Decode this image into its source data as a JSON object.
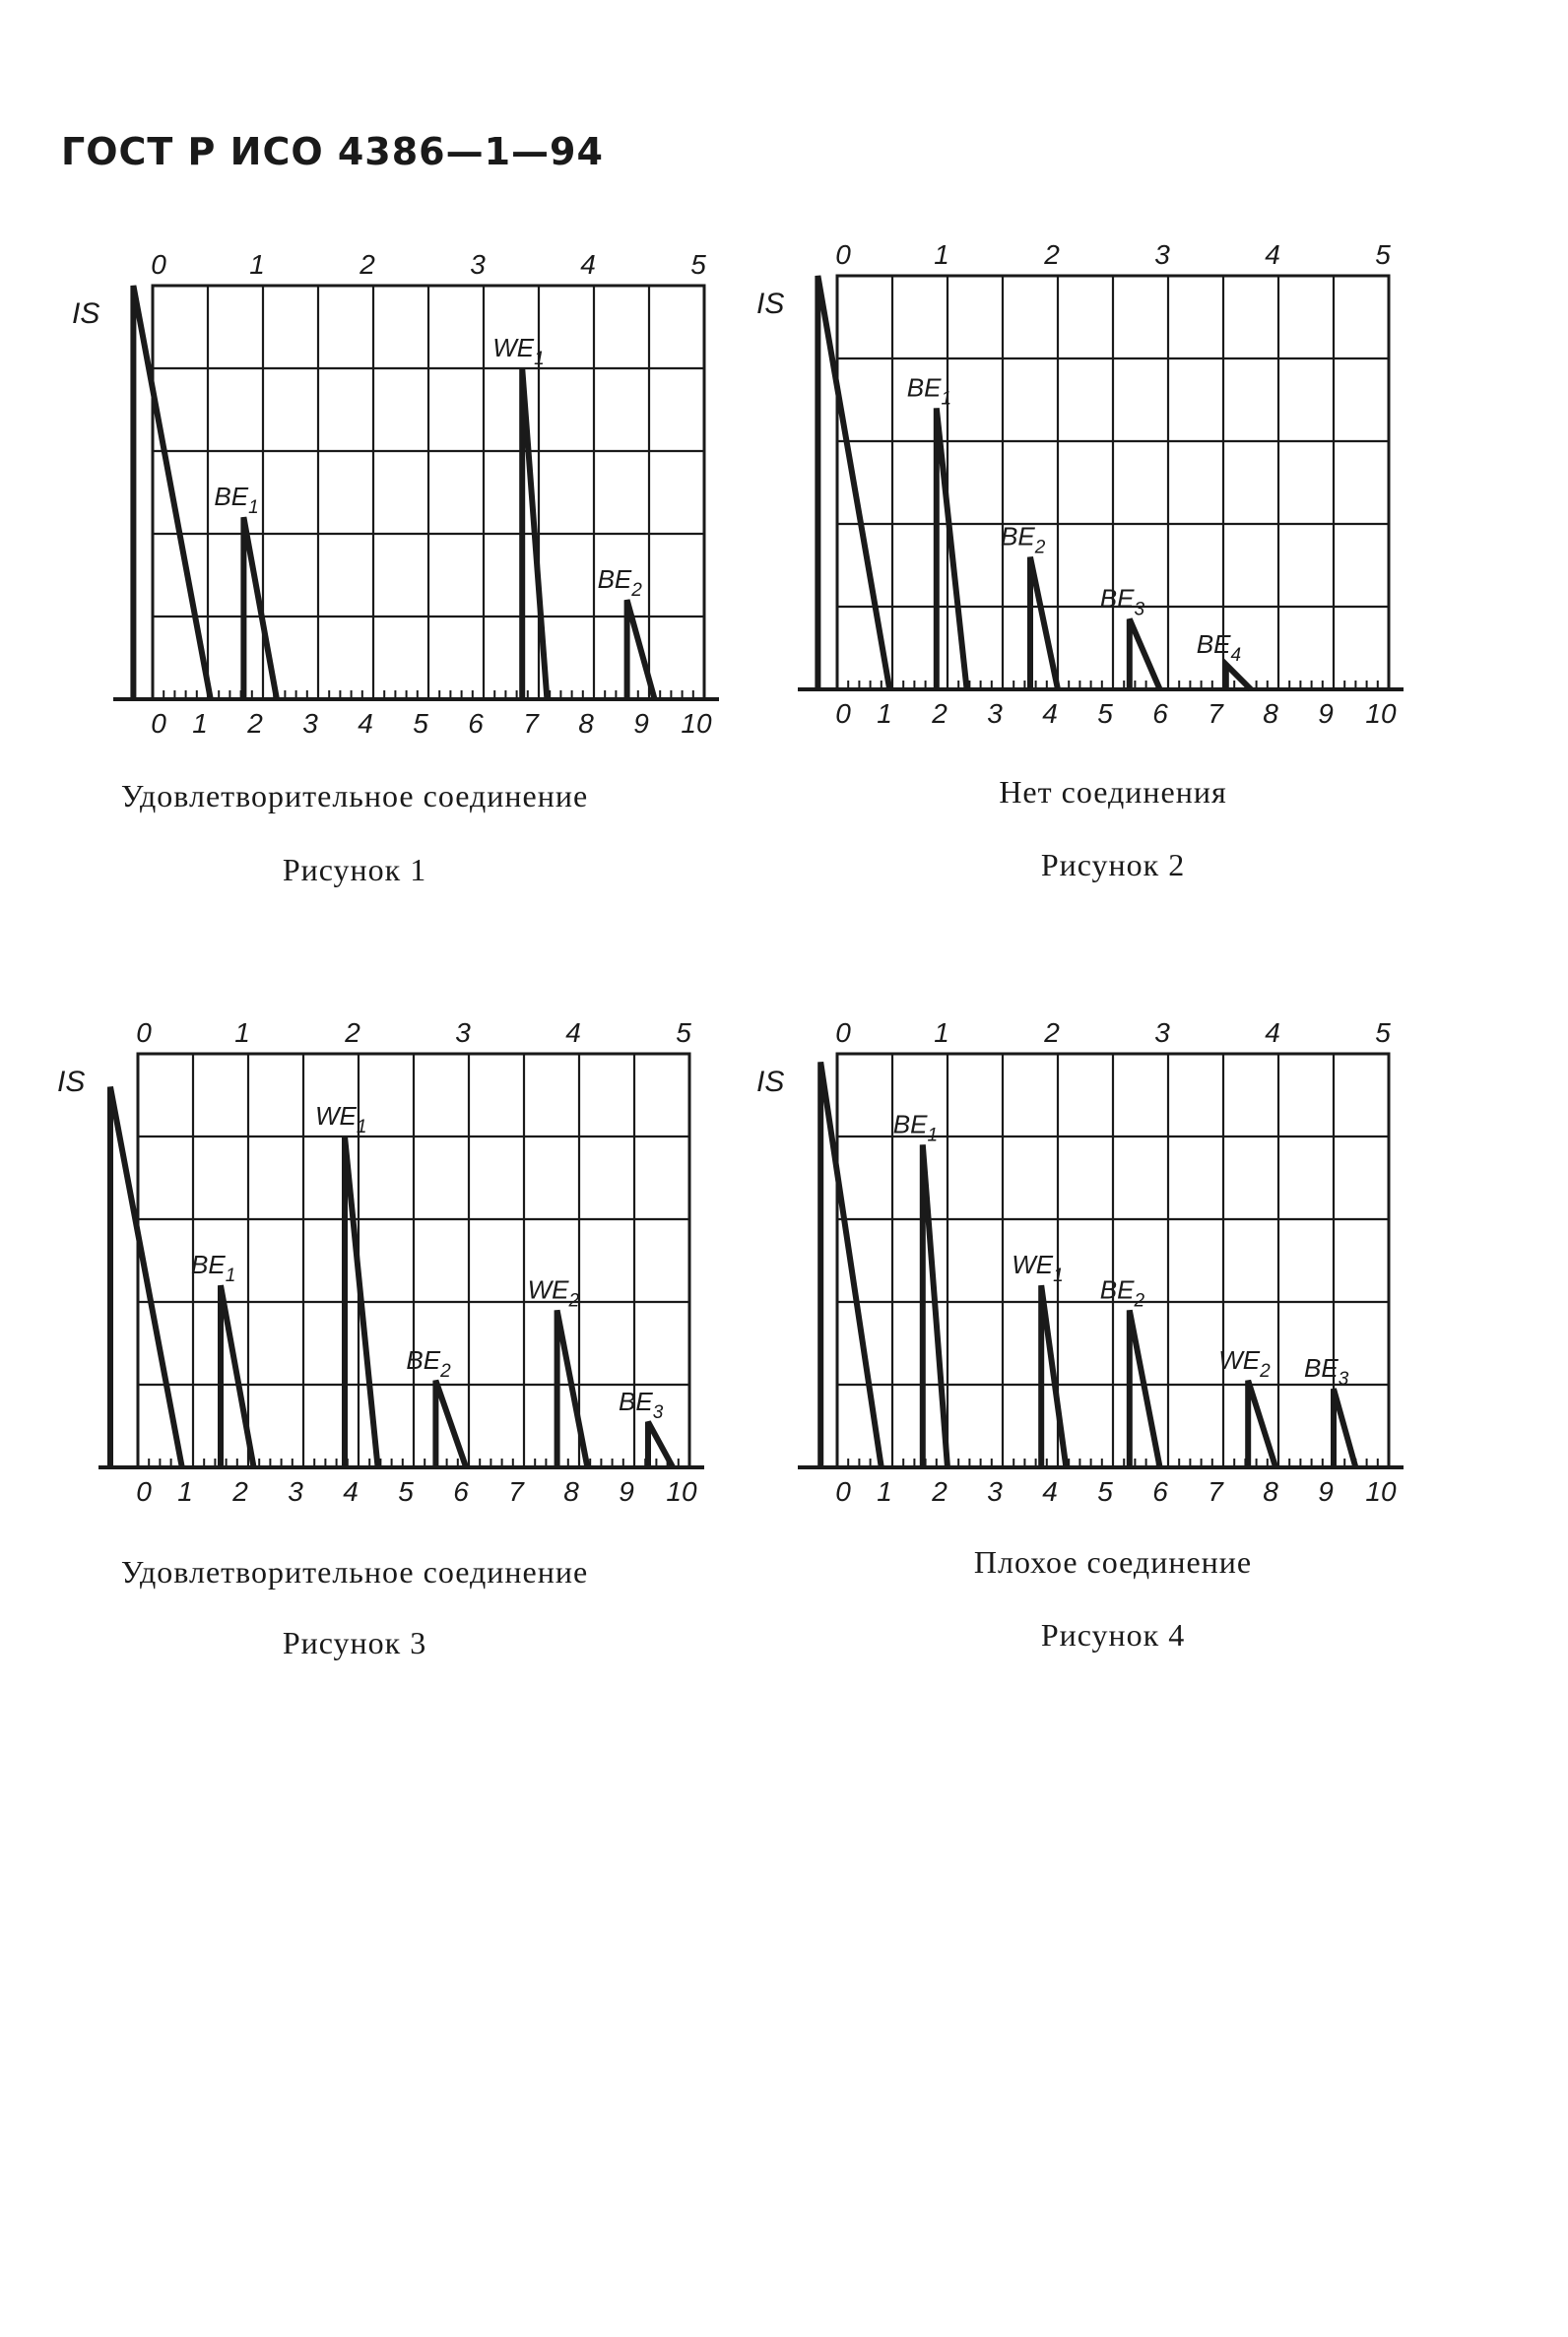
{
  "header": "ГОСТ Р ИСО 4386—1—94",
  "figures": [
    {
      "caption": "Удовлетворительное соединение",
      "figure_label": "Рисунок 1",
      "chart": {
        "type": "line",
        "y_axis_label": "IS",
        "top_ticks": [
          "0",
          "1",
          "2",
          "3",
          "4",
          "5"
        ],
        "bottom_ticks": [
          "0",
          "1",
          "2",
          "3",
          "4",
          "5",
          "6",
          "7",
          "8",
          "9",
          "10"
        ],
        "xlim": [
          0,
          10
        ],
        "ylim": [
          0,
          5
        ],
        "echoes": [
          {
            "label": "IS",
            "x": -0.35,
            "height": 5.0,
            "width": 1.4
          },
          {
            "label": "BE1",
            "x": 1.65,
            "height": 2.2,
            "width": 0.6
          },
          {
            "label": "WE1",
            "x": 6.7,
            "height": 4.0,
            "width": 0.45
          },
          {
            "label": "BE2",
            "x": 8.6,
            "height": 1.2,
            "width": 0.5
          }
        ]
      }
    },
    {
      "caption": "Нет соединения",
      "figure_label": "Рисунок 2",
      "chart": {
        "type": "line",
        "y_axis_label": "IS",
        "top_ticks": [
          "0",
          "1",
          "2",
          "3",
          "4",
          "5"
        ],
        "bottom_ticks": [
          "0",
          "1",
          "2",
          "3",
          "4",
          "5",
          "6",
          "7",
          "8",
          "9",
          "10"
        ],
        "xlim": [
          0,
          10
        ],
        "ylim": [
          0,
          5
        ],
        "echoes": [
          {
            "label": "IS",
            "x": -0.35,
            "height": 5.0,
            "width": 1.3
          },
          {
            "label": "BE1",
            "x": 1.8,
            "height": 3.4,
            "width": 0.55
          },
          {
            "label": "BE2",
            "x": 3.5,
            "height": 1.6,
            "width": 0.5
          },
          {
            "label": "BE3",
            "x": 5.3,
            "height": 0.85,
            "width": 0.55
          },
          {
            "label": "BE4",
            "x": 7.05,
            "height": 0.3,
            "width": 0.45
          }
        ]
      }
    },
    {
      "caption": "Удовлетворительное соединение",
      "figure_label": "Рисунок 3",
      "chart": {
        "type": "line",
        "y_axis_label": "IS",
        "top_ticks": [
          "0",
          "1",
          "2",
          "3",
          "4",
          "5"
        ],
        "bottom_ticks": [
          "0",
          "1",
          "2",
          "3",
          "4",
          "5",
          "6",
          "7",
          "8",
          "9",
          "10"
        ],
        "xlim": [
          0,
          10
        ],
        "ylim": [
          0,
          5
        ],
        "echoes": [
          {
            "label": "IS",
            "x": -0.5,
            "height": 4.6,
            "width": 1.3
          },
          {
            "label": "BE1",
            "x": 1.5,
            "height": 2.2,
            "width": 0.6
          },
          {
            "label": "WE1",
            "x": 3.75,
            "height": 4.0,
            "width": 0.6
          },
          {
            "label": "BE2",
            "x": 5.4,
            "height": 1.05,
            "width": 0.55
          },
          {
            "label": "WE2",
            "x": 7.6,
            "height": 1.9,
            "width": 0.55
          },
          {
            "label": "BE3",
            "x": 9.25,
            "height": 0.55,
            "width": 0.45
          }
        ]
      }
    },
    {
      "caption": "Плохое соединение",
      "figure_label": "Рисунок 4",
      "chart": {
        "type": "line",
        "y_axis_label": "IS",
        "top_ticks": [
          "0",
          "1",
          "2",
          "3",
          "4",
          "5"
        ],
        "bottom_ticks": [
          "0",
          "1",
          "2",
          "3",
          "4",
          "5",
          "6",
          "7",
          "8",
          "9",
          "10"
        ],
        "xlim": [
          0,
          10
        ],
        "ylim": [
          0,
          5
        ],
        "echoes": [
          {
            "label": "IS",
            "x": -0.3,
            "height": 4.9,
            "width": 1.1
          },
          {
            "label": "BE1",
            "x": 1.55,
            "height": 3.9,
            "width": 0.45
          },
          {
            "label": "WE1",
            "x": 3.7,
            "height": 2.2,
            "width": 0.45
          },
          {
            "label": "BE2",
            "x": 5.3,
            "height": 1.9,
            "width": 0.55
          },
          {
            "label": "WE2",
            "x": 7.45,
            "height": 1.05,
            "width": 0.5
          },
          {
            "label": "BE3",
            "x": 9.0,
            "height": 0.95,
            "width": 0.4
          }
        ]
      }
    }
  ]
}
